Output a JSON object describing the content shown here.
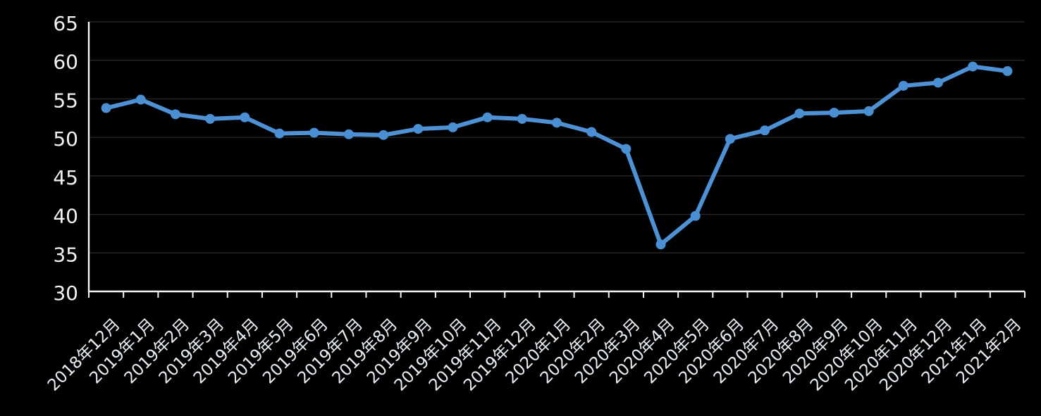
{
  "chart_data": {
    "type": "line",
    "title": "",
    "xlabel": "",
    "ylabel": "",
    "categories": [
      "2018年12月",
      "2019年1月",
      "2019年2月",
      "2019年3月",
      "2019年4月",
      "2019年5月",
      "2019年6月",
      "2019年7月",
      "2019年8月",
      "2019年9月",
      "2019年10月",
      "2019年11月",
      "2019年12月",
      "2020年1月",
      "2020年2月",
      "2020年3月",
      "2020年4月",
      "2020年5月",
      "2020年6月",
      "2020年7月",
      "2020年8月",
      "2020年9月",
      "2020年10月",
      "2020年11月",
      "2020年12月",
      "2021年1月",
      "2021年2月"
    ],
    "values": [
      53.8,
      54.9,
      53.0,
      52.4,
      52.6,
      50.5,
      50.6,
      50.4,
      50.3,
      51.1,
      51.3,
      52.6,
      52.4,
      51.9,
      50.7,
      48.5,
      36.1,
      39.8,
      49.8,
      50.9,
      53.1,
      53.2,
      53.4,
      56.7,
      57.1,
      59.2,
      58.6
    ],
    "ylim": [
      30,
      65
    ],
    "y_ticks": [
      30,
      35,
      40,
      45,
      50,
      55,
      60,
      65
    ],
    "grid": true,
    "legend": false,
    "marker": "circle",
    "x_label_rotation_deg": -45
  },
  "colors": {
    "background": "#000000",
    "line": "#4E91D5",
    "marker": "#4A8ED3",
    "axis": "#F5F5F5",
    "gridline": "#262626",
    "y_tick_label": "#F2F2F2",
    "x_tick_label": "#E9EFF7"
  }
}
